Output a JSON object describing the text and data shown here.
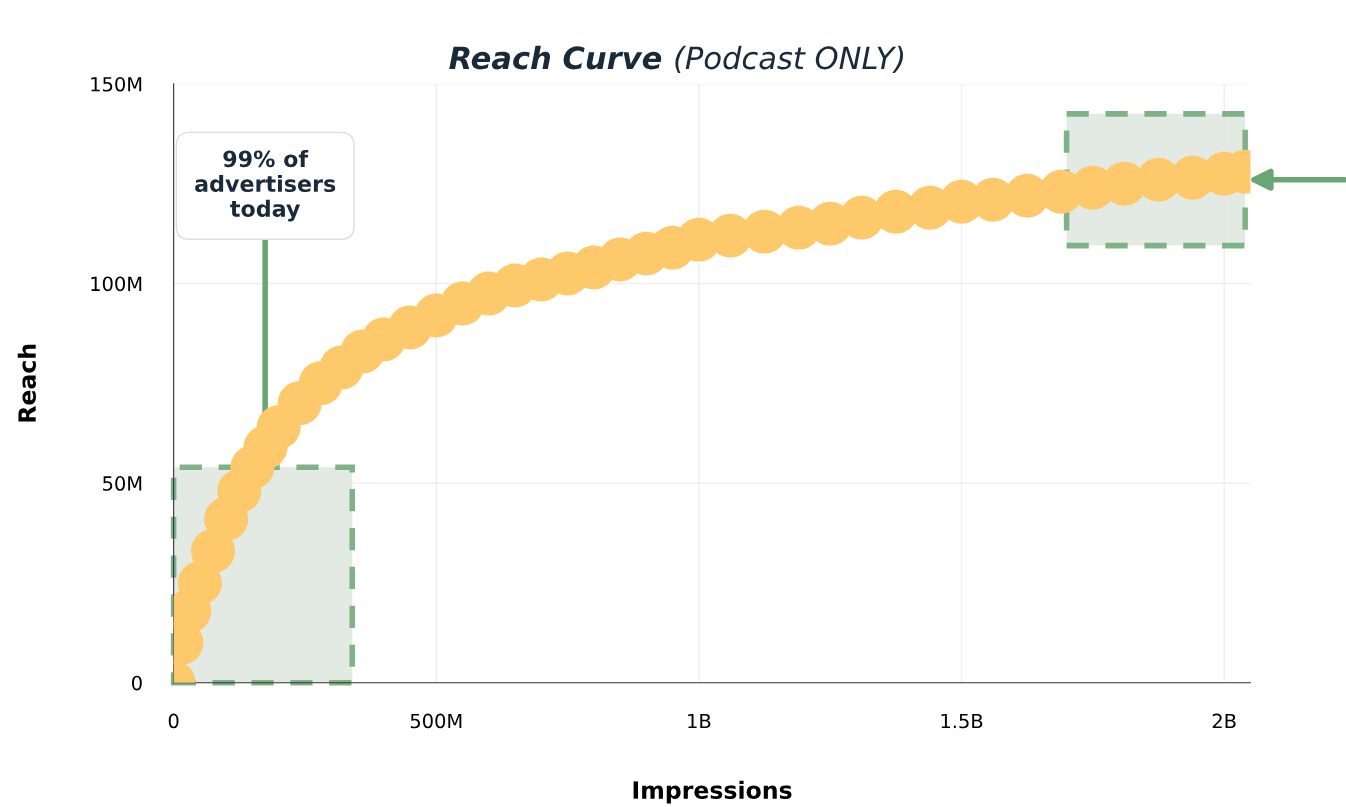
{
  "chart_data": {
    "type": "scatter",
    "title": "Reach Curve",
    "subtitle": "(Podcast ONLY)",
    "xlabel": "Impressions",
    "ylabel": "Reach",
    "x": [
      0,
      15000000,
      30000000,
      50000000,
      75000000,
      100000000,
      125000000,
      150000000,
      175000000,
      200000000,
      240000000,
      280000000,
      320000000,
      360000000,
      400000000,
      450000000,
      500000000,
      550000000,
      600000000,
      650000000,
      700000000,
      750000000,
      800000000,
      850000000,
      900000000,
      950000000,
      1000000000,
      1060000000,
      1125000000,
      1190000000,
      1250000000,
      1310000000,
      1375000000,
      1440000000,
      1500000000,
      1560000000,
      1625000000,
      1690000000,
      1750000000,
      1810000000,
      1875000000,
      1940000000,
      2000000000,
      2040000000
    ],
    "series": [
      {
        "color": "#fdc96b",
        "values": [
          0,
          10000000,
          18000000,
          25000000,
          33000000,
          41000000,
          48000000,
          54000000,
          59000000,
          64000000,
          70000000,
          75000000,
          79000000,
          83000000,
          86000000,
          89000000,
          92000000,
          95000000,
          97500000,
          99500000,
          101000000,
          102500000,
          104000000,
          106000000,
          107500000,
          109000000,
          111000000,
          112000000,
          113000000,
          114000000,
          115000000,
          116500000,
          118000000,
          119000000,
          120500000,
          121000000,
          122000000,
          123000000,
          124000000,
          125000000,
          126000000,
          126500000,
          127500000,
          128000000
        ]
      }
    ],
    "xlim": [
      0,
      2050000000
    ],
    "xticks": [
      {
        "value": 0,
        "label": "0"
      },
      {
        "value": 500000000,
        "label": "500M"
      },
      {
        "value": 1000000000,
        "label": "1B"
      },
      {
        "value": 1500000000,
        "label": "1.5B"
      },
      {
        "value": 2000000000,
        "label": "2B"
      }
    ],
    "ylim": [
      0,
      150000000
    ],
    "yticks": [
      {
        "value": 0,
        "label": "0"
      },
      {
        "value": 50000000,
        "label": "50M"
      },
      {
        "value": 100000000,
        "label": "100M"
      },
      {
        "value": 150000000,
        "label": "150M"
      }
    ],
    "bands": [
      {
        "axis": "x",
        "from": 0,
        "to": 340000000,
        "color": "#6aa574"
      },
      {
        "axis": "x",
        "from": 1700000000,
        "to": 2040000000,
        "color": "#6aa574"
      }
    ],
    "annotations": [
      "99% of advertisers today"
    ],
    "grid": true,
    "marker": "circle"
  }
}
